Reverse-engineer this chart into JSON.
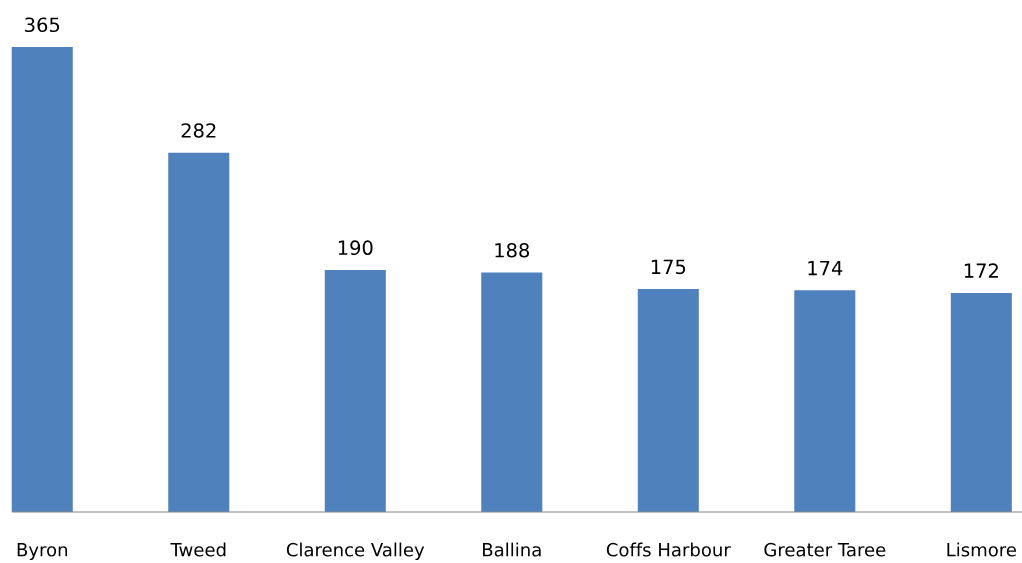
{
  "chart_data": {
    "type": "bar",
    "categories": [
      "Byron",
      "Tweed",
      "Clarence Valley",
      "Ballina",
      "Coffs Harbour",
      "Greater Taree",
      "Lismore"
    ],
    "values": [
      365,
      282,
      190,
      188,
      175,
      174,
      172
    ],
    "color": "#4f81bd",
    "data_labels": true,
    "grid": false,
    "legend": false
  }
}
